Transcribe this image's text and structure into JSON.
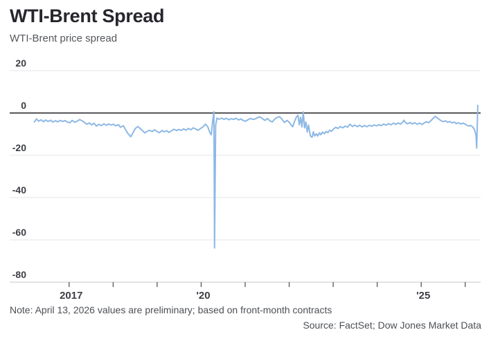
{
  "header": {
    "title": "WTI-Brent Spread",
    "subtitle": "WTI-Brent price spread"
  },
  "footer": {
    "note": "Note: April 13, 2026 values are preliminary; based on front-month contracts",
    "source": "Source: FactSet; Dow Jones Market Data"
  },
  "colors": {
    "line": "#8db8e4",
    "grid": "#e6e6ea",
    "zero_line": "#202125",
    "axis_line": "#c6c7cb",
    "tick": "#4a4b50",
    "tick_label": "#3c3e44"
  },
  "chart_data": {
    "type": "line",
    "title": "WTI-Brent Spread",
    "subtitle": "WTI-Brent price spread",
    "xlabel": "",
    "ylabel": "",
    "legend_position": "none",
    "grid": true,
    "x_domain": [
      2015.65,
      2026.35
    ],
    "y_domain": [
      -80,
      20
    ],
    "y_ticks": [
      {
        "value": 20,
        "label": "20"
      },
      {
        "value": 0,
        "label": "0"
      },
      {
        "value": -20,
        "label": "-20"
      },
      {
        "value": -40,
        "label": "-40"
      },
      {
        "value": -60,
        "label": "-60"
      },
      {
        "value": -80,
        "label": "-80"
      }
    ],
    "x_ticks": [
      {
        "year": 2017,
        "label": "2017"
      },
      {
        "year": 2018,
        "label": ""
      },
      {
        "year": 2019,
        "label": ""
      },
      {
        "year": 2020,
        "label": "'20"
      },
      {
        "year": 2021,
        "label": ""
      },
      {
        "year": 2022,
        "label": ""
      },
      {
        "year": 2023,
        "label": ""
      },
      {
        "year": 2024,
        "label": ""
      },
      {
        "year": 2025,
        "label": "'25"
      },
      {
        "year": 2026,
        "label": ""
      }
    ],
    "series": [
      {
        "name": "WTI-Brent price spread",
        "color": "#8db8e4",
        "points": [
          [
            2016.21,
            -4.2
          ],
          [
            2016.26,
            -2.8
          ],
          [
            2016.31,
            -3.9
          ],
          [
            2016.36,
            -3.2
          ],
          [
            2016.42,
            -4.1
          ],
          [
            2016.47,
            -3.3
          ],
          [
            2016.52,
            -4.0
          ],
          [
            2016.58,
            -3.4
          ],
          [
            2016.63,
            -4.3
          ],
          [
            2016.69,
            -3.6
          ],
          [
            2016.74,
            -4.2
          ],
          [
            2016.8,
            -3.5
          ],
          [
            2016.85,
            -4.0
          ],
          [
            2016.91,
            -3.6
          ],
          [
            2016.96,
            -4.3
          ],
          [
            2017.02,
            -4.6
          ],
          [
            2017.07,
            -3.5
          ],
          [
            2017.13,
            -4.4
          ],
          [
            2017.18,
            -3.9
          ],
          [
            2017.24,
            -3.1
          ],
          [
            2017.29,
            -3.6
          ],
          [
            2017.35,
            -4.5
          ],
          [
            2017.4,
            -5.3
          ],
          [
            2017.46,
            -4.7
          ],
          [
            2017.51,
            -5.6
          ],
          [
            2017.57,
            -4.9
          ],
          [
            2017.62,
            -6.2
          ],
          [
            2017.68,
            -5.3
          ],
          [
            2017.73,
            -6.0
          ],
          [
            2017.79,
            -5.1
          ],
          [
            2017.84,
            -5.8
          ],
          [
            2017.9,
            -5.2
          ],
          [
            2017.95,
            -5.7
          ],
          [
            2018.01,
            -5.3
          ],
          [
            2018.06,
            -6.1
          ],
          [
            2018.12,
            -5.5
          ],
          [
            2018.17,
            -6.8
          ],
          [
            2018.23,
            -6.0
          ],
          [
            2018.28,
            -7.8
          ],
          [
            2018.34,
            -9.8
          ],
          [
            2018.4,
            -11.2
          ],
          [
            2018.45,
            -9.4
          ],
          [
            2018.5,
            -7.4
          ],
          [
            2018.56,
            -6.4
          ],
          [
            2018.61,
            -7.2
          ],
          [
            2018.67,
            -8.4
          ],
          [
            2018.72,
            -9.4
          ],
          [
            2018.78,
            -8.6
          ],
          [
            2018.83,
            -8.2
          ],
          [
            2018.89,
            -8.8
          ],
          [
            2018.94,
            -7.9
          ],
          [
            2019.0,
            -8.8
          ],
          [
            2019.05,
            -9.3
          ],
          [
            2019.11,
            -8.3
          ],
          [
            2019.16,
            -8.9
          ],
          [
            2019.22,
            -8.4
          ],
          [
            2019.27,
            -9.2
          ],
          [
            2019.33,
            -8.4
          ],
          [
            2019.38,
            -7.7
          ],
          [
            2019.44,
            -8.3
          ],
          [
            2019.49,
            -7.8
          ],
          [
            2019.55,
            -8.2
          ],
          [
            2019.6,
            -7.5
          ],
          [
            2019.66,
            -8.1
          ],
          [
            2019.71,
            -7.3
          ],
          [
            2019.77,
            -7.9
          ],
          [
            2019.82,
            -7.0
          ],
          [
            2019.88,
            -7.6
          ],
          [
            2019.93,
            -8.2
          ],
          [
            2019.98,
            -7.4
          ],
          [
            2020.04,
            -6.6
          ],
          [
            2020.1,
            -5.3
          ],
          [
            2020.15,
            -6.5
          ],
          [
            2020.2,
            -9.4
          ],
          [
            2020.23,
            -10.3
          ],
          [
            2020.26,
            -4.0
          ],
          [
            2020.29,
            0.6
          ],
          [
            2020.305,
            -63.8
          ],
          [
            2020.33,
            -5.8
          ],
          [
            2020.36,
            -2.4
          ],
          [
            2020.41,
            -3.0
          ],
          [
            2020.46,
            -2.4
          ],
          [
            2020.52,
            -3.0
          ],
          [
            2020.57,
            -2.5
          ],
          [
            2020.63,
            -3.2
          ],
          [
            2020.68,
            -2.7
          ],
          [
            2020.74,
            -3.0
          ],
          [
            2020.79,
            -2.5
          ],
          [
            2020.85,
            -3.3
          ],
          [
            2020.9,
            -2.8
          ],
          [
            2020.96,
            -3.6
          ],
          [
            2021.01,
            -3.9
          ],
          [
            2021.07,
            -3.1
          ],
          [
            2021.12,
            -2.6
          ],
          [
            2021.18,
            -3.0
          ],
          [
            2021.23,
            -2.8
          ],
          [
            2021.29,
            -2.1
          ],
          [
            2021.34,
            -1.8
          ],
          [
            2021.4,
            -2.8
          ],
          [
            2021.45,
            -3.5
          ],
          [
            2021.51,
            -2.6
          ],
          [
            2021.56,
            -3.7
          ],
          [
            2021.62,
            -4.2
          ],
          [
            2021.67,
            -2.9
          ],
          [
            2021.73,
            -2.1
          ],
          [
            2021.78,
            -1.7
          ],
          [
            2021.84,
            -3.0
          ],
          [
            2021.89,
            -4.5
          ],
          [
            2021.95,
            -3.5
          ],
          [
            2022.0,
            -4.4
          ],
          [
            2022.04,
            -5.5
          ],
          [
            2022.08,
            -6.5
          ],
          [
            2022.12,
            -4.1
          ],
          [
            2022.16,
            -2.1
          ],
          [
            2022.2,
            -1.0
          ],
          [
            2022.23,
            -5.6
          ],
          [
            2022.26,
            -2.0
          ],
          [
            2022.29,
            -6.6
          ],
          [
            2022.32,
            0.5
          ],
          [
            2022.35,
            -7.0
          ],
          [
            2022.38,
            -4.3
          ],
          [
            2022.41,
            -9.0
          ],
          [
            2022.44,
            -5.7
          ],
          [
            2022.48,
            -10.8
          ],
          [
            2022.52,
            -11.5
          ],
          [
            2022.55,
            -8.9
          ],
          [
            2022.58,
            -10.9
          ],
          [
            2022.62,
            -9.8
          ],
          [
            2022.65,
            -10.9
          ],
          [
            2022.69,
            -9.3
          ],
          [
            2022.72,
            -10.3
          ],
          [
            2022.76,
            -9.0
          ],
          [
            2022.8,
            -9.8
          ],
          [
            2022.84,
            -8.7
          ],
          [
            2022.88,
            -9.3
          ],
          [
            2022.92,
            -8.1
          ],
          [
            2022.96,
            -8.7
          ],
          [
            2023.01,
            -7.5
          ],
          [
            2023.06,
            -6.8
          ],
          [
            2023.11,
            -7.3
          ],
          [
            2023.16,
            -6.4
          ],
          [
            2023.22,
            -7.0
          ],
          [
            2023.27,
            -6.2
          ],
          [
            2023.33,
            -6.7
          ],
          [
            2023.38,
            -5.3
          ],
          [
            2023.44,
            -6.4
          ],
          [
            2023.49,
            -5.7
          ],
          [
            2023.55,
            -6.5
          ],
          [
            2023.6,
            -5.8
          ],
          [
            2023.66,
            -6.6
          ],
          [
            2023.71,
            -5.9
          ],
          [
            2023.77,
            -6.5
          ],
          [
            2023.82,
            -5.8
          ],
          [
            2023.88,
            -6.3
          ],
          [
            2023.93,
            -5.6
          ],
          [
            2023.98,
            -6.1
          ],
          [
            2024.04,
            -5.5
          ],
          [
            2024.09,
            -6.0
          ],
          [
            2024.15,
            -5.2
          ],
          [
            2024.2,
            -5.8
          ],
          [
            2024.26,
            -5.0
          ],
          [
            2024.31,
            -5.6
          ],
          [
            2024.37,
            -4.8
          ],
          [
            2024.42,
            -5.4
          ],
          [
            2024.48,
            -4.7
          ],
          [
            2024.53,
            -5.3
          ],
          [
            2024.58,
            -4.3
          ],
          [
            2024.61,
            -3.4
          ],
          [
            2024.64,
            -4.5
          ],
          [
            2024.69,
            -5.1
          ],
          [
            2024.75,
            -4.5
          ],
          [
            2024.8,
            -5.2
          ],
          [
            2024.85,
            -4.6
          ],
          [
            2024.91,
            -5.3
          ],
          [
            2024.96,
            -4.8
          ],
          [
            2025.02,
            -5.4
          ],
          [
            2025.07,
            -4.7
          ],
          [
            2025.12,
            -4.1
          ],
          [
            2025.17,
            -4.6
          ],
          [
            2025.22,
            -3.6
          ],
          [
            2025.27,
            -2.6
          ],
          [
            2025.32,
            -1.6
          ],
          [
            2025.36,
            -2.2
          ],
          [
            2025.4,
            -2.9
          ],
          [
            2025.45,
            -3.6
          ],
          [
            2025.5,
            -4.1
          ],
          [
            2025.55,
            -3.7
          ],
          [
            2025.6,
            -4.4
          ],
          [
            2025.65,
            -4.0
          ],
          [
            2025.7,
            -4.7
          ],
          [
            2025.75,
            -4.3
          ],
          [
            2025.8,
            -5.0
          ],
          [
            2025.85,
            -4.6
          ],
          [
            2025.9,
            -5.2
          ],
          [
            2025.95,
            -4.8
          ],
          [
            2026.0,
            -5.3
          ],
          [
            2026.04,
            -5.8
          ],
          [
            2026.08,
            -6.2
          ],
          [
            2026.12,
            -5.9
          ],
          [
            2026.16,
            -6.4
          ],
          [
            2026.19,
            -7.1
          ],
          [
            2026.22,
            -8.4
          ],
          [
            2026.245,
            -10.5
          ],
          [
            2026.26,
            -16.6
          ],
          [
            2026.285,
            3.6
          ]
        ]
      }
    ]
  }
}
